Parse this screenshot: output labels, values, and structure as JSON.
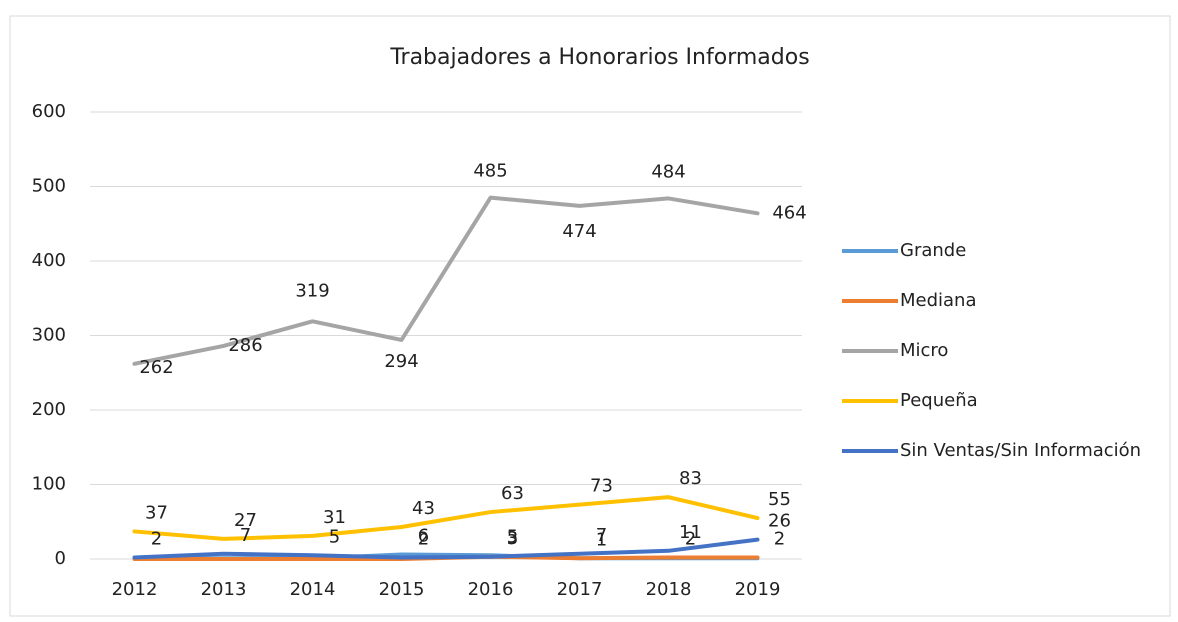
{
  "chart_data": {
    "type": "line",
    "title": "Trabajadores a Honorarios Informados",
    "x": [
      "2012",
      "2013",
      "2014",
      "2015",
      "2016",
      "2017",
      "2018",
      "2019"
    ],
    "ylim": [
      0,
      600
    ],
    "yticks": [
      0,
      100,
      200,
      300,
      400,
      500,
      600
    ],
    "grid": true,
    "legend": "right",
    "series": [
      {
        "name": "Grande",
        "color": "#5b9bd5",
        "values": [
          1,
          1,
          1,
          6,
          5,
          1,
          1,
          1
        ],
        "value_labels": [
          null,
          null,
          null,
          "6",
          "5",
          null,
          null,
          null
        ]
      },
      {
        "name": "Mediana",
        "color": "#ed7d31",
        "values": [
          0,
          0,
          0,
          0,
          3,
          1,
          2,
          2
        ],
        "value_labels": [
          null,
          null,
          null,
          null,
          "3",
          "1",
          "2",
          "2"
        ]
      },
      {
        "name": "Micro",
        "color": "#a5a5a5",
        "values": [
          262,
          286,
          319,
          294,
          485,
          474,
          484,
          464
        ],
        "value_labels": [
          "262",
          "286",
          "319",
          "294",
          "485",
          "474",
          "484",
          "464"
        ]
      },
      {
        "name": "Pequeña",
        "color": "#ffc000",
        "values": [
          37,
          27,
          31,
          43,
          63,
          73,
          83,
          55
        ],
        "value_labels": [
          "37",
          "27",
          "31",
          "43",
          "63",
          "73",
          "83",
          "55"
        ]
      },
      {
        "name": "Sin Ventas/Sin Información",
        "color": "#4472c4",
        "values": [
          2,
          7,
          5,
          2,
          3,
          7,
          11,
          26
        ],
        "value_labels": [
          "2",
          "7",
          "5",
          "2",
          "3",
          "7",
          "11",
          "26"
        ]
      }
    ]
  }
}
